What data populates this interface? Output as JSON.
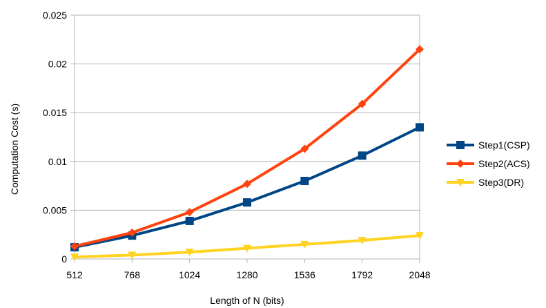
{
  "chart_data": {
    "type": "line",
    "title": "",
    "xlabel": "Length of N (bits)",
    "ylabel": "Computation Cost (s)",
    "categories": [
      "512",
      "768",
      "1024",
      "1280",
      "1536",
      "1792",
      "2048"
    ],
    "ylim": [
      0,
      0.025
    ],
    "yticks": [
      0,
      0.005,
      0.01,
      0.015,
      0.02,
      0.025
    ],
    "ytick_labels": [
      "0",
      "0.005",
      "0.01",
      "0.015",
      "0.02",
      "0.025"
    ],
    "grid": "horizontal",
    "legend_position": "right",
    "series": [
      {
        "name": "Step1(CSP)",
        "color": "#004586",
        "marker": "square",
        "values": [
          0.0012,
          0.0024,
          0.0039,
          0.0058,
          0.008,
          0.0106,
          0.0135
        ]
      },
      {
        "name": "Step2(ACS)",
        "color": "#ff420e",
        "marker": "diamond",
        "values": [
          0.0013,
          0.0027,
          0.0048,
          0.0077,
          0.0113,
          0.0159,
          0.0215
        ]
      },
      {
        "name": "Step3(DR)",
        "color": "#ffd320",
        "marker": "triangle-down",
        "values": [
          0.0002,
          0.0004,
          0.0007,
          0.0011,
          0.0015,
          0.0019,
          0.0024
        ]
      }
    ]
  }
}
